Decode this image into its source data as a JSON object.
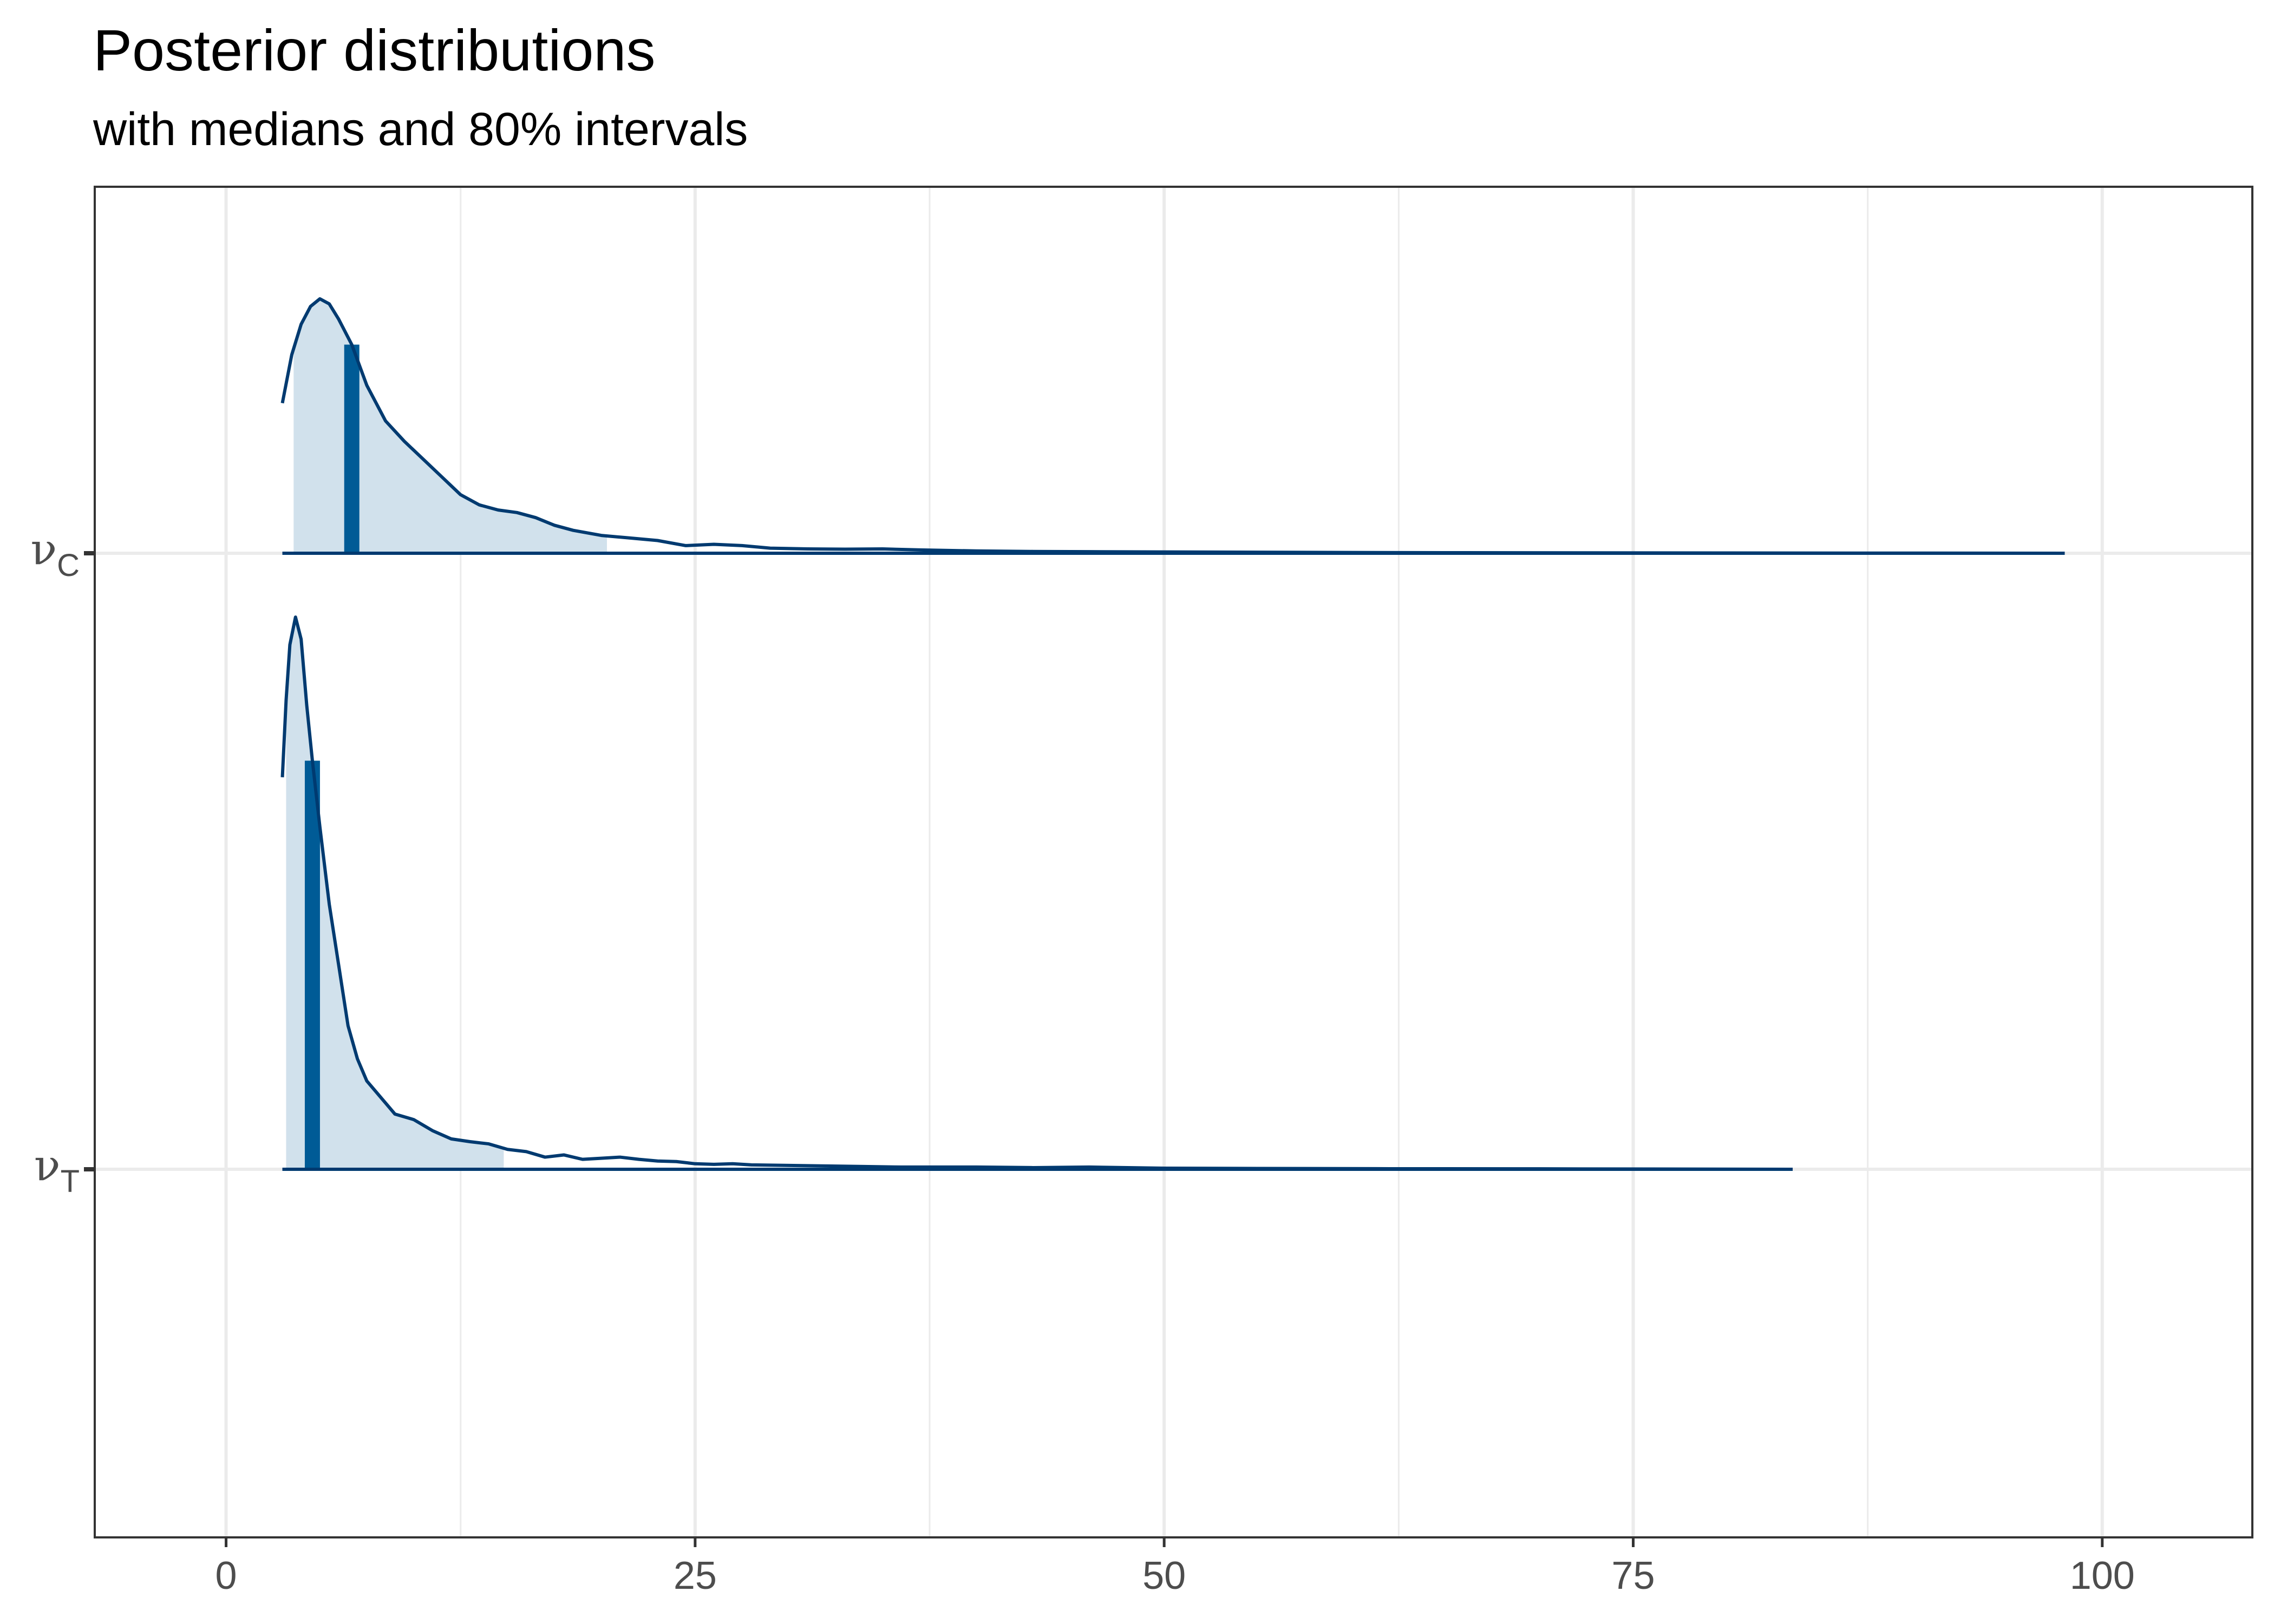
{
  "chart_data": {
    "type": "density_ridges",
    "title": "Posterior distributions",
    "subtitle": "with medians and 80% intervals",
    "xlim": [
      -7,
      108
    ],
    "x_ticks": [
      0,
      25,
      50,
      75,
      100
    ],
    "grid": true,
    "colors": {
      "line": "#003a70",
      "fill": "#d1e1ec",
      "median": "#005b96",
      "grid": "#ebebeb",
      "border": "#333333"
    },
    "series": [
      {
        "label": "ν",
        "subscript": "C",
        "range": [
          3,
          98
        ],
        "median": 6.7,
        "interval_80": [
          3.6,
          20.3
        ],
        "density": [
          [
            3.0,
            0.59
          ],
          [
            3.5,
            0.78
          ],
          [
            4.0,
            0.9
          ],
          [
            4.5,
            0.97
          ],
          [
            5.0,
            1.0
          ],
          [
            5.5,
            0.98
          ],
          [
            6.0,
            0.92
          ],
          [
            6.7,
            0.82
          ],
          [
            7.5,
            0.66
          ],
          [
            8.5,
            0.52
          ],
          [
            9.5,
            0.44
          ],
          [
            10.5,
            0.37
          ],
          [
            11.5,
            0.3
          ],
          [
            12.5,
            0.23
          ],
          [
            13.5,
            0.19
          ],
          [
            14.5,
            0.17
          ],
          [
            15.5,
            0.16
          ],
          [
            16.5,
            0.14
          ],
          [
            17.5,
            0.11
          ],
          [
            18.5,
            0.09
          ],
          [
            20.0,
            0.07
          ],
          [
            21.5,
            0.06
          ],
          [
            23.0,
            0.05
          ],
          [
            24.5,
            0.03
          ],
          [
            26.0,
            0.035
          ],
          [
            27.5,
            0.03
          ],
          [
            29.0,
            0.02
          ],
          [
            31.0,
            0.017
          ],
          [
            33.0,
            0.016
          ],
          [
            35.0,
            0.017
          ],
          [
            37.0,
            0.013
          ],
          [
            40.0,
            0.009
          ],
          [
            43.0,
            0.007
          ],
          [
            46.0,
            0.006
          ],
          [
            50.0,
            0.005
          ],
          [
            55.0,
            0.004
          ],
          [
            60.0,
            0.003
          ],
          [
            66.0,
            0.002
          ],
          [
            72.0,
            0.0015
          ],
          [
            80.0,
            0.001
          ],
          [
            90.0,
            0.0005
          ],
          [
            98.0,
            0.0
          ]
        ]
      },
      {
        "label": "ν",
        "subscript": "T",
        "range": [
          3,
          83.5
        ],
        "median": 4.6,
        "interval_80": [
          3.2,
          14.8
        ],
        "density": [
          [
            3.0,
            0.71
          ],
          [
            3.2,
            0.85
          ],
          [
            3.4,
            0.95
          ],
          [
            3.7,
            1.0
          ],
          [
            4.0,
            0.96
          ],
          [
            4.3,
            0.84
          ],
          [
            4.6,
            0.74
          ],
          [
            5.0,
            0.62
          ],
          [
            5.5,
            0.48
          ],
          [
            6.0,
            0.37
          ],
          [
            6.5,
            0.26
          ],
          [
            7.0,
            0.2
          ],
          [
            7.5,
            0.16
          ],
          [
            8.0,
            0.14
          ],
          [
            8.5,
            0.12
          ],
          [
            9.0,
            0.1
          ],
          [
            10.0,
            0.09
          ],
          [
            11.0,
            0.07
          ],
          [
            12.0,
            0.055
          ],
          [
            13.0,
            0.05
          ],
          [
            14.0,
            0.046
          ],
          [
            15.0,
            0.036
          ],
          [
            16.0,
            0.032
          ],
          [
            17.0,
            0.022
          ],
          [
            18.0,
            0.026
          ],
          [
            19.0,
            0.018
          ],
          [
            20.0,
            0.02
          ],
          [
            21.0,
            0.022
          ],
          [
            22.0,
            0.018
          ],
          [
            23.0,
            0.015
          ],
          [
            24.0,
            0.014
          ],
          [
            25.0,
            0.01
          ],
          [
            26.0,
            0.009
          ],
          [
            27.0,
            0.01
          ],
          [
            28.0,
            0.008
          ],
          [
            30.0,
            0.007
          ],
          [
            32.0,
            0.006
          ],
          [
            34.0,
            0.005
          ],
          [
            36.0,
            0.004
          ],
          [
            40.0,
            0.004
          ],
          [
            43.0,
            0.003
          ],
          [
            46.0,
            0.004
          ],
          [
            50.0,
            0.002
          ],
          [
            55.0,
            0.0015
          ],
          [
            62.0,
            0.001
          ],
          [
            70.0,
            0.0008
          ],
          [
            83.5,
            0.0
          ]
        ]
      }
    ]
  }
}
